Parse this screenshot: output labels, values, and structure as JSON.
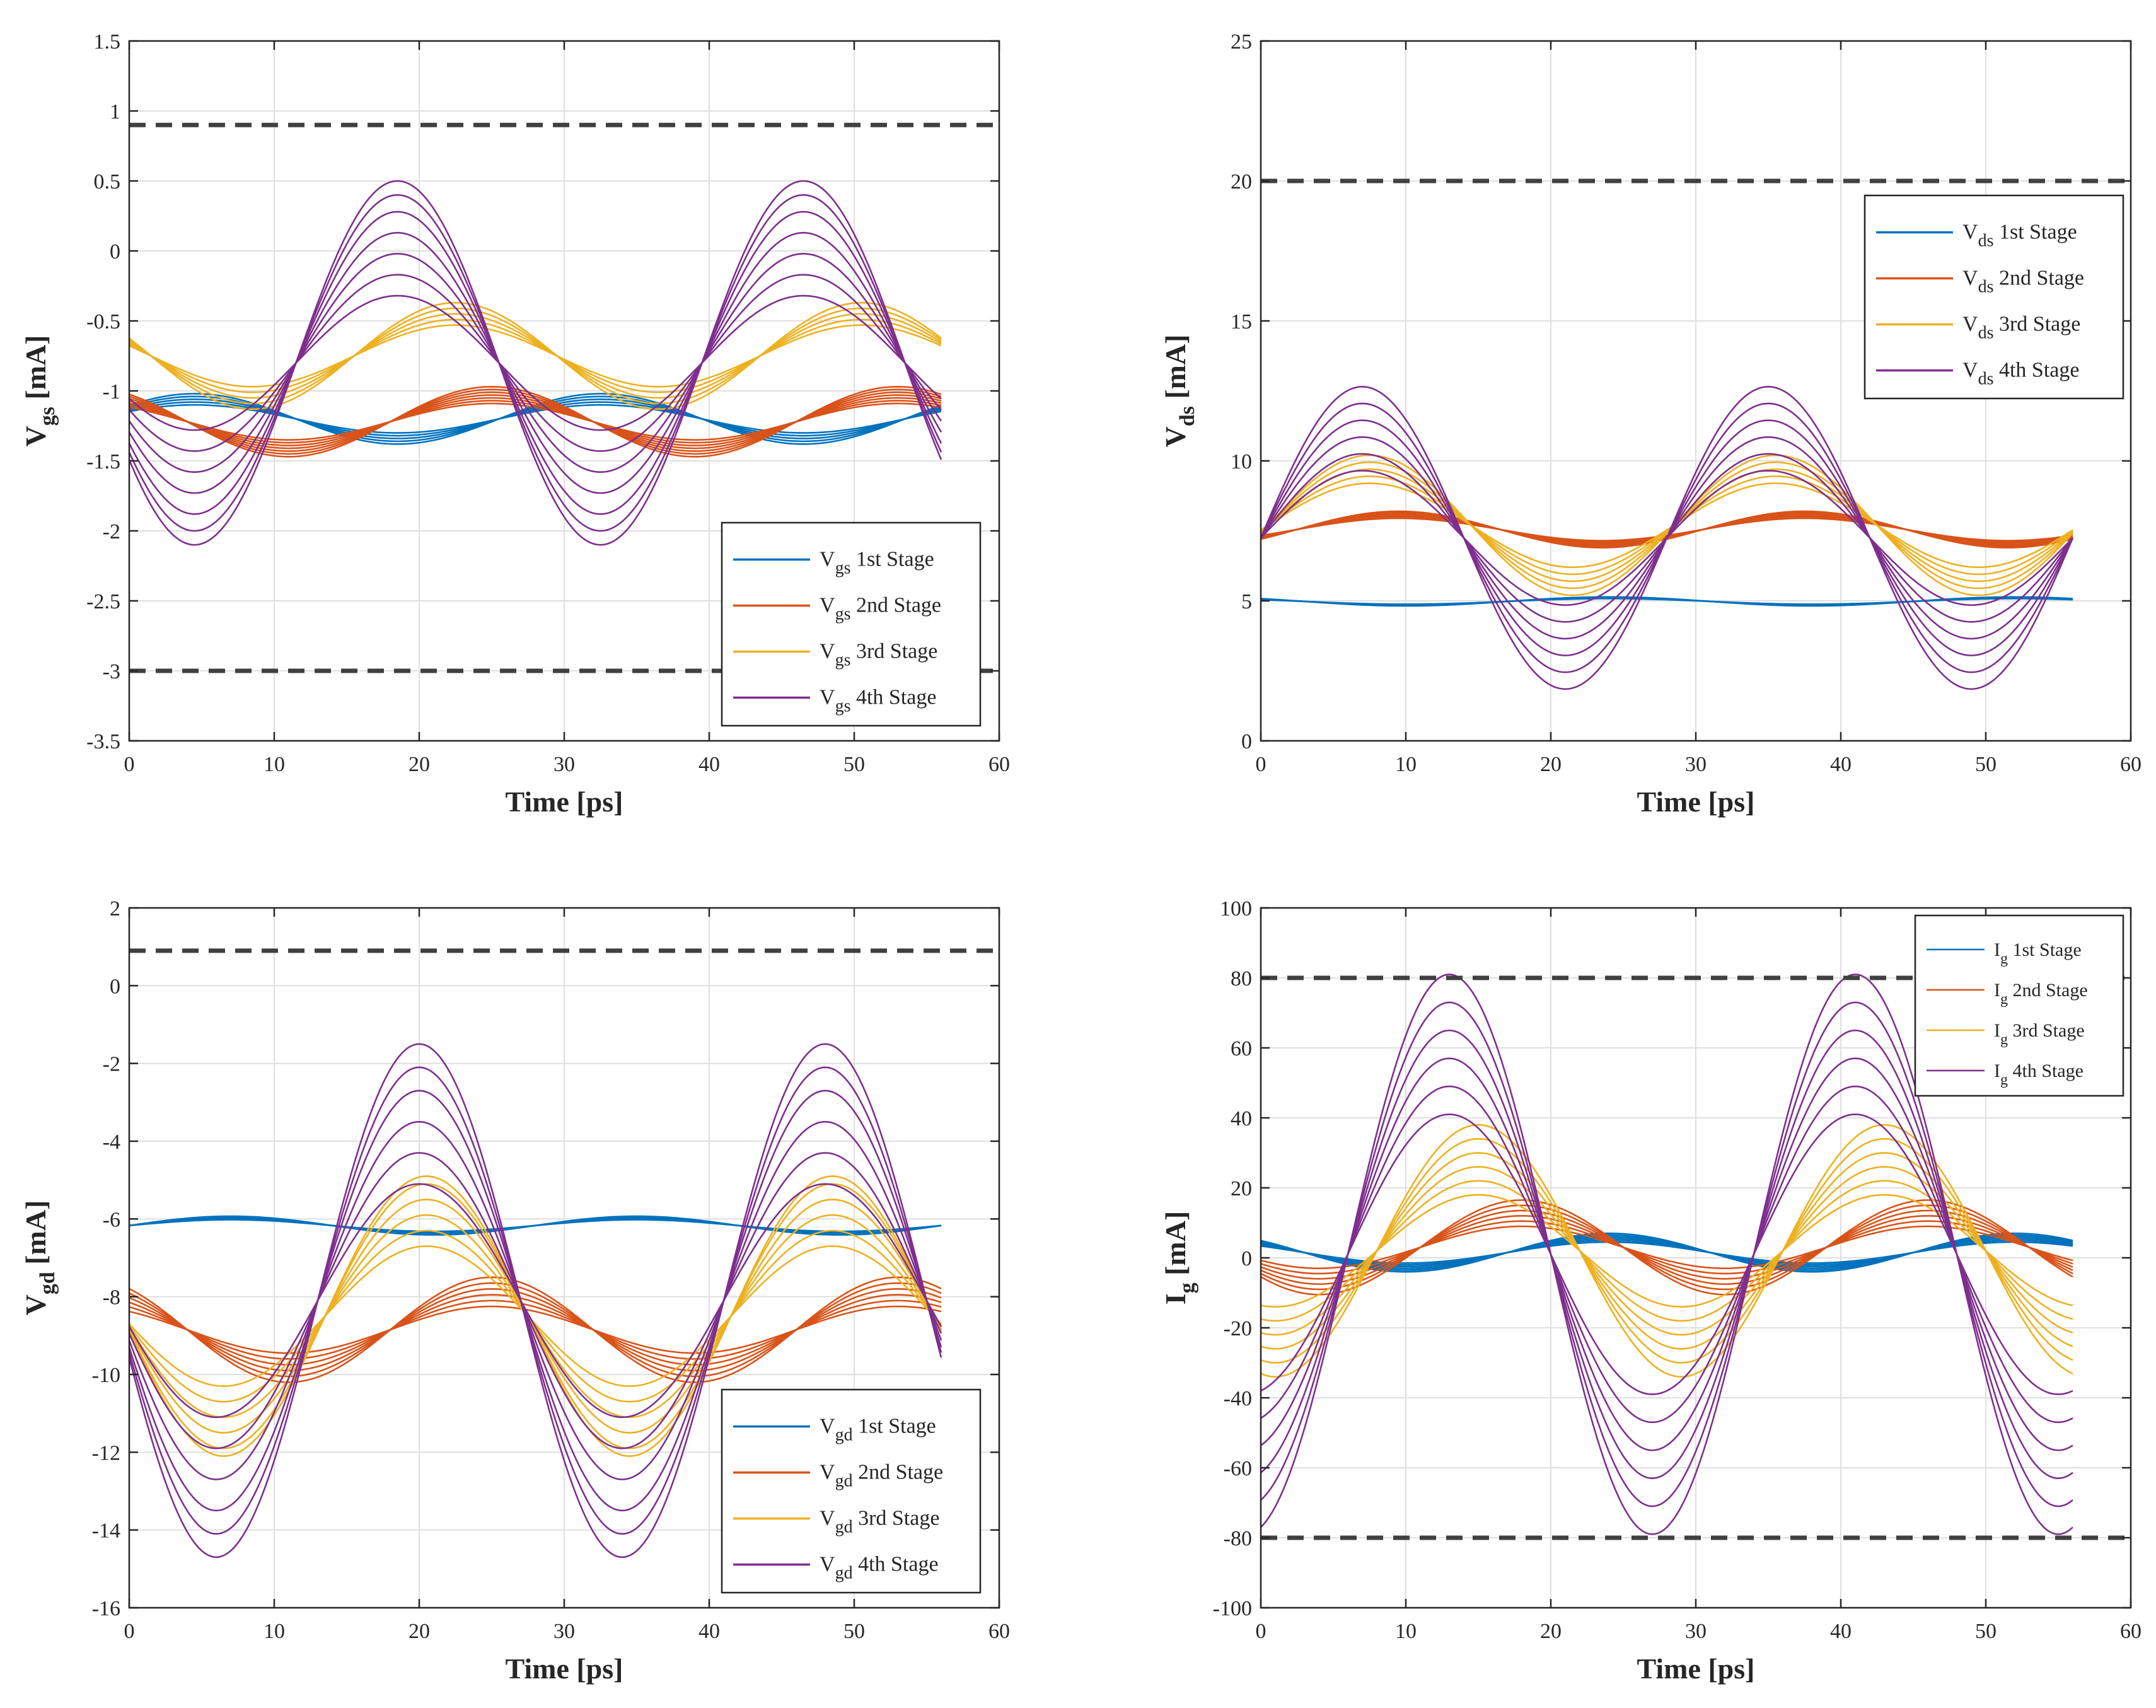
{
  "chart_data": [
    {
      "id": "vgs",
      "type": "line",
      "xlabel": "Time [ps]",
      "ylabel_main": "V",
      "ylabel_sub": "gs",
      "ylabel_unit": "[mA]",
      "xlim": [
        0,
        60
      ],
      "ylim": [
        -3.5,
        1.5
      ],
      "xticks": [
        "0",
        "10",
        "20",
        "30",
        "40",
        "50",
        "60"
      ],
      "yticks": [
        "1.5",
        "1",
        "0.5",
        "0",
        "-0.5",
        "-1",
        "-1.5",
        "-2",
        "-2.5",
        "-3",
        "-3.5"
      ],
      "limit_lines": [
        0.9,
        -3.0
      ],
      "x_end": 56,
      "legend_position": "bottom-right",
      "series": [
        {
          "name_main": "V",
          "name_sub": "gs",
          "name_rest": "1st Stage",
          "color": "#0072BD",
          "center": -1.2,
          "amplitudes": [
            0.1,
            0.12,
            0.14,
            0.16,
            0.18
          ],
          "period": 28,
          "phase_peak_at": 4.5
        },
        {
          "name_main": "V",
          "name_sub": "gs",
          "name_rest": "2nd Stage",
          "color": "#D95319",
          "center": -1.22,
          "amplitudes": [
            0.13,
            0.15,
            0.17,
            0.19,
            0.21,
            0.23,
            0.25
          ],
          "period": 28,
          "phase_peak_at": 25
        },
        {
          "name_main": "V",
          "name_sub": "gs",
          "name_rest": "3rd Stage",
          "color": "#EDB120",
          "center": -0.75,
          "amplitudes": [
            0.22,
            0.26,
            0.3,
            0.34,
            0.38
          ],
          "period": 28,
          "phase_peak_at": 22.5
        },
        {
          "name_main": "V",
          "name_sub": "gs",
          "name_rest": "4th Stage",
          "color": "#7E2F8E",
          "center": -0.8,
          "amplitudes": [
            0.48,
            0.63,
            0.78,
            0.93,
            1.08,
            1.2,
            1.3
          ],
          "period": 28,
          "phase_peak_at": 18.5
        }
      ]
    },
    {
      "id": "vds",
      "type": "line",
      "xlabel": "Time [ps]",
      "ylabel_main": "V",
      "ylabel_sub": "ds",
      "ylabel_unit": "[mA]",
      "xlim": [
        0,
        60
      ],
      "ylim": [
        0,
        25
      ],
      "xticks": [
        "0",
        "10",
        "20",
        "30",
        "40",
        "50",
        "60"
      ],
      "yticks": [
        "25",
        "20",
        "15",
        "10",
        "5",
        "0"
      ],
      "limit_lines": [
        20
      ],
      "x_end": 56,
      "legend_position": "top-right",
      "series": [
        {
          "name_main": "V",
          "name_sub": "ds",
          "name_rest": "1st Stage",
          "color": "#0072BD",
          "center": 4.98,
          "amplitudes": [
            0.1,
            0.12,
            0.14,
            0.16
          ],
          "period": 28,
          "phase_peak_at": 24
        },
        {
          "name_main": "V",
          "name_sub": "ds",
          "name_rest": "2nd Stage",
          "color": "#D95319",
          "center": 7.55,
          "amplitudes": [
            0.4,
            0.45,
            0.5,
            0.55,
            0.6,
            0.65
          ],
          "period": 28,
          "phase_peak_at": 9.5
        },
        {
          "name_main": "V",
          "name_sub": "ds",
          "name_rest": "3rd Stage",
          "color": "#EDB120",
          "center": 7.7,
          "amplitudes": [
            1.5,
            1.75,
            2.0,
            2.25,
            2.5
          ],
          "period": 28,
          "phase_peak_at": 7.5
        },
        {
          "name_main": "V",
          "name_sub": "ds",
          "name_rest": "4th Stage",
          "color": "#7E2F8E",
          "center": 7.25,
          "amplitudes": [
            2.4,
            3.0,
            3.6,
            4.2,
            4.8,
            5.4
          ],
          "period": 28,
          "phase_peak_at": 7
        }
      ]
    },
    {
      "id": "vgd",
      "type": "line",
      "xlabel": "Time [ps]",
      "ylabel_main": "V",
      "ylabel_sub": "gd",
      "ylabel_unit": "[mA]",
      "xlim": [
        0,
        60
      ],
      "ylim": [
        -16,
        2
      ],
      "xticks": [
        "0",
        "10",
        "20",
        "30",
        "40",
        "50",
        "60"
      ],
      "yticks": [
        "2",
        "0",
        "-2",
        "-4",
        "-6",
        "-8",
        "-10",
        "-12",
        "-14",
        "-16"
      ],
      "limit_lines": [
        0.9
      ],
      "x_end": 56,
      "legend_position": "bottom-right",
      "series": [
        {
          "name_main": "V",
          "name_sub": "gd",
          "name_rest": "1st Stage",
          "color": "#0072BD",
          "center": -6.17,
          "amplitudes": [
            0.15,
            0.18,
            0.21,
            0.24
          ],
          "period": 28,
          "phase_peak_at": 7
        },
        {
          "name_main": "V",
          "name_sub": "gd",
          "name_rest": "2nd Stage",
          "color": "#D95319",
          "center": -8.85,
          "amplitudes": [
            0.6,
            0.75,
            0.9,
            1.05,
            1.2,
            1.35
          ],
          "period": 28,
          "phase_peak_at": 25
        },
        {
          "name_main": "V",
          "name_sub": "gd",
          "name_rest": "3rd Stage",
          "color": "#EDB120",
          "center": -8.5,
          "amplitudes": [
            1.8,
            2.2,
            2.6,
            3.0,
            3.4,
            3.6
          ],
          "period": 28,
          "phase_peak_at": 20.5
        },
        {
          "name_main": "V",
          "name_sub": "gd",
          "name_rest": "4th Stage",
          "color": "#7E2F8E",
          "center": -8.1,
          "amplitudes": [
            3.0,
            3.8,
            4.6,
            5.4,
            6.0,
            6.6
          ],
          "period": 28,
          "phase_peak_at": 20
        }
      ]
    },
    {
      "id": "ig",
      "type": "line",
      "xlabel": "Time [ps]",
      "ylabel_main": "I",
      "ylabel_sub": "g",
      "ylabel_unit": "[mA]",
      "xlim": [
        0,
        60
      ],
      "ylim": [
        -100,
        100
      ],
      "xticks": [
        "0",
        "10",
        "20",
        "30",
        "40",
        "50",
        "60"
      ],
      "yticks": [
        "100",
        "80",
        "60",
        "40",
        "20",
        "0",
        "-20",
        "-40",
        "-60",
        "-80",
        "-100"
      ],
      "limit_lines": [
        80,
        -80
      ],
      "x_end": 56,
      "legend_position": "top-right",
      "series": [
        {
          "name_main": "I",
          "name_sub": "g",
          "name_rest": "1st Stage",
          "color": "#0072BD",
          "center": 1.5,
          "amplitudes": [
            3,
            3.5,
            4,
            4.5,
            5,
            5.5
          ],
          "period": 28,
          "phase_peak_at": 24
        },
        {
          "name_main": "I",
          "name_sub": "g",
          "name_rest": "2nd Stage",
          "color": "#D95319",
          "center": 3,
          "amplitudes": [
            6,
            7.5,
            9,
            10.5,
            12,
            13.5
          ],
          "period": 28,
          "phase_peak_at": 18
        },
        {
          "name_main": "I",
          "name_sub": "g",
          "name_rest": "3rd Stage",
          "color": "#EDB120",
          "center": 2,
          "amplitudes": [
            16,
            20,
            24,
            28,
            32,
            36
          ],
          "period": 28,
          "phase_peak_at": 15
        },
        {
          "name_main": "I",
          "name_sub": "g",
          "name_rest": "4th Stage",
          "color": "#7E2F8E",
          "center": 1,
          "amplitudes": [
            40,
            48,
            56,
            64,
            72,
            80
          ],
          "period": 28,
          "phase_peak_at": 13
        }
      ]
    }
  ]
}
